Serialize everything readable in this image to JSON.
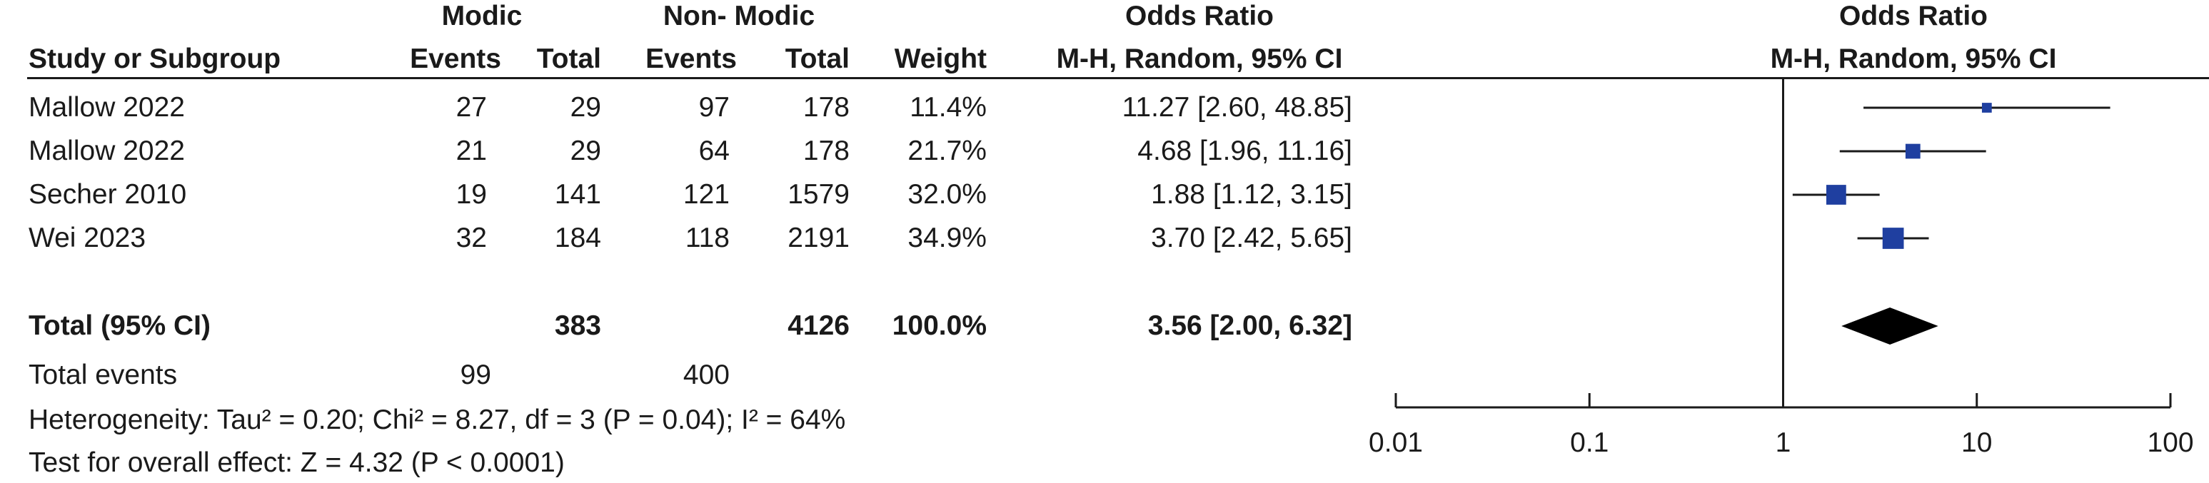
{
  "header": {
    "group1": "Modic",
    "group2": "Non- Modic",
    "or_col_title": "Odds Ratio",
    "or_col_sub": "M-H, Random, 95% CI",
    "plot_title": "Odds Ratio",
    "plot_sub": "M-H, Random, 95% CI",
    "study_col": "Study or Subgroup",
    "events1": "Events",
    "total1": "Total",
    "events2": "Events",
    "total2": "Total",
    "weight": "Weight"
  },
  "studies": [
    {
      "name": "Mallow 2022",
      "e1": "27",
      "t1": "29",
      "e2": "97",
      "t2": "178",
      "weight": "11.4%",
      "ci_text": "11.27 [2.60, 48.85]"
    },
    {
      "name": "Mallow 2022",
      "e1": "21",
      "t1": "29",
      "e2": "64",
      "t2": "178",
      "weight": "21.7%",
      "ci_text": "4.68 [1.96, 11.16]"
    },
    {
      "name": "Secher 2010",
      "e1": "19",
      "t1": "141",
      "e2": "121",
      "t2": "1579",
      "weight": "32.0%",
      "ci_text": "1.88 [1.12, 3.15]"
    },
    {
      "name": "Wei 2023",
      "e1": "32",
      "t1": "184",
      "e2": "118",
      "t2": "2191",
      "weight": "34.9%",
      "ci_text": "3.70 [2.42, 5.65]"
    }
  ],
  "total": {
    "label": "Total (95% CI)",
    "t1": "383",
    "t2": "4126",
    "weight": "100.0%",
    "ci_text": "3.56 [2.00, 6.32]"
  },
  "total_events": {
    "label": "Total events",
    "e1": "99",
    "e2": "400"
  },
  "heterogeneity": "Heterogeneity: Tau² = 0.20; Chi² = 8.27, df = 3 (P = 0.04); I² = 64%",
  "overall_effect": "Test for overall effect: Z = 4.32 (P < 0.0001)",
  "colors": {
    "marker": "#1f3fa0",
    "diamond": "#000000",
    "line": "#1a1a1a"
  },
  "chart_data": {
    "type": "forest",
    "x_scale": "log",
    "xlim": [
      0.01,
      100
    ],
    "x_ticks": [
      0.01,
      0.1,
      1,
      10,
      100
    ],
    "x_tick_labels": [
      "0.01",
      "0.1",
      "1",
      "10",
      "100"
    ],
    "null_line": 1,
    "studies": [
      {
        "name": "Mallow 2022",
        "or": 11.27,
        "lo": 2.6,
        "hi": 48.85,
        "weight": 11.4
      },
      {
        "name": "Mallow 2022",
        "or": 4.68,
        "lo": 1.96,
        "hi": 11.16,
        "weight": 21.7
      },
      {
        "name": "Secher 2010",
        "or": 1.88,
        "lo": 1.12,
        "hi": 3.15,
        "weight": 32.0
      },
      {
        "name": "Wei 2023",
        "or": 3.7,
        "lo": 2.42,
        "hi": 5.65,
        "weight": 34.9
      }
    ],
    "pooled": {
      "or": 3.56,
      "lo": 2.0,
      "hi": 6.32
    }
  }
}
